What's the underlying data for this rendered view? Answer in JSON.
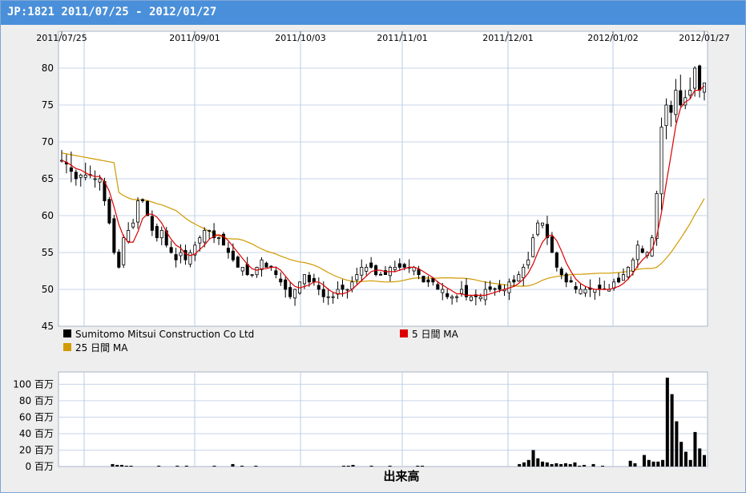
{
  "title": "JP:1821 2011/07/25 - 2012/01/27",
  "chart_data": [
    {
      "type": "candlestick",
      "x_tick_labels": [
        "2011/07/25",
        "2011/09/01",
        "2011/10/03",
        "2011/11/01",
        "2011/12/01",
        "2012/01/02",
        "2012/01/27"
      ],
      "y_ticks": [
        45,
        50,
        55,
        60,
        65,
        70,
        75,
        80
      ],
      "ylim": [
        45,
        85
      ],
      "grid": true,
      "legend_position": "bottom",
      "series": [
        {
          "name": "Sumitomo Mitsui Construction Co Ltd",
          "color": "#000000",
          "close": [
            67.5,
            67,
            66,
            65,
            65.5,
            65.5,
            65.5,
            65,
            65,
            62,
            59,
            55,
            53,
            57,
            58,
            59,
            62,
            62,
            60,
            58,
            57,
            58,
            56,
            55,
            54,
            55,
            54,
            55,
            56,
            57,
            58,
            58,
            57,
            57,
            56,
            55,
            54,
            53,
            53,
            52,
            52,
            53,
            54,
            53,
            53,
            52,
            51,
            50,
            49,
            50,
            51,
            52,
            51,
            51,
            50,
            49,
            49,
            49,
            50,
            50,
            50,
            51,
            52,
            53,
            53,
            53,
            52,
            52,
            52,
            53,
            53,
            53,
            53,
            53,
            53,
            52,
            51,
            51,
            51,
            50,
            50,
            49,
            49,
            49,
            50,
            49,
            49,
            49,
            49,
            50,
            50,
            50,
            50,
            50,
            51,
            51,
            52,
            53,
            54,
            57,
            59,
            59,
            57,
            55,
            53,
            52,
            51,
            51,
            50,
            50,
            50,
            50,
            50,
            50,
            50,
            50,
            51,
            51,
            52,
            53,
            54,
            56,
            55,
            55,
            57,
            63,
            72,
            75,
            74,
            77,
            75,
            76,
            77,
            80,
            77,
            78
          ]
        },
        {
          "name": "5 日間 MA",
          "color": "#dd0000"
        },
        {
          "name": "25 日間 MA",
          "color": "#d09a00"
        }
      ]
    },
    {
      "type": "bar",
      "title": "出来高",
      "y_tick_labels": [
        "0 百万",
        "20 百万",
        "40 百万",
        "60 百万",
        "80 百万",
        "100 百万"
      ],
      "ylim": [
        0,
        115
      ],
      "values": [
        0,
        0,
        0,
        0,
        0,
        0,
        0,
        0,
        0,
        0,
        0,
        3,
        2,
        2,
        1,
        1,
        0,
        0,
        0,
        0,
        0,
        1,
        0,
        0,
        0,
        1,
        0,
        1,
        0,
        0,
        0,
        0,
        0,
        1,
        0,
        0,
        0,
        3,
        0,
        1,
        0,
        0,
        1,
        0,
        0,
        0,
        0,
        0,
        0,
        0,
        0,
        0,
        0,
        0,
        0,
        0,
        0,
        0,
        0,
        0,
        0,
        1,
        1,
        2,
        0,
        0,
        0,
        1,
        0,
        0,
        0,
        1,
        0,
        0,
        0,
        0,
        0,
        1,
        1,
        0,
        0,
        0,
        0,
        0,
        0,
        0,
        0,
        0,
        0,
        0,
        0,
        0,
        0,
        0,
        0,
        0,
        0,
        0,
        0,
        3,
        5,
        8,
        20,
        10,
        6,
        5,
        3,
        4,
        3,
        4,
        3,
        5,
        1,
        2,
        0,
        3,
        0,
        1,
        0,
        0,
        0,
        0,
        0,
        7,
        4,
        0,
        14,
        8,
        6,
        6,
        8,
        108,
        88,
        55,
        30,
        18,
        8,
        42,
        22,
        14
      ]
    }
  ]
}
